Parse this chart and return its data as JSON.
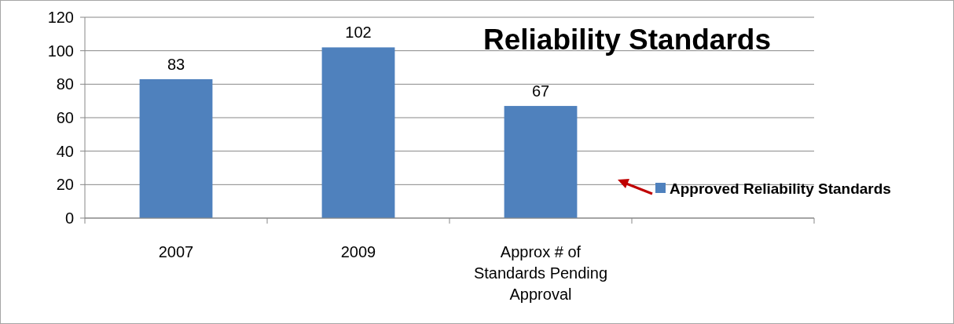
{
  "chart_data": {
    "type": "bar",
    "title": "Reliability Standards",
    "categories": [
      "2007",
      "2009",
      "Approx # of Standards Pending Approval",
      null
    ],
    "series": [
      {
        "name": "Approved Reliability Standards",
        "color": "#4f81bd",
        "values": [
          83,
          102,
          67,
          null
        ]
      }
    ],
    "ylim": [
      0,
      120
    ],
    "yticks": [
      0,
      20,
      40,
      60,
      80,
      100,
      120
    ],
    "grid": "y",
    "legend": "right",
    "data_labels": true
  }
}
